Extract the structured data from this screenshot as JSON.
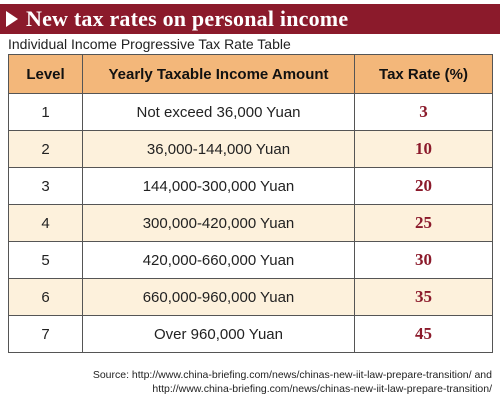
{
  "title": "New tax rates on personal income",
  "subtitle": "Individual Income Progressive Tax Rate Table",
  "table": {
    "headers": [
      "Level",
      "Yearly Taxable Income Amount",
      "Tax Rate (%)"
    ],
    "rows": [
      {
        "level": "1",
        "amount": "Not exceed 36,000 Yuan",
        "rate": "3"
      },
      {
        "level": "2",
        "amount": "36,000-144,000 Yuan",
        "rate": "10"
      },
      {
        "level": "3",
        "amount": "144,000-300,000 Yuan",
        "rate": "20"
      },
      {
        "level": "4",
        "amount": "300,000-420,000 Yuan",
        "rate": "25"
      },
      {
        "level": "5",
        "amount": "420,000-660,000 Yuan",
        "rate": "30"
      },
      {
        "level": "6",
        "amount": "660,000-960,000 Yuan",
        "rate": "35"
      },
      {
        "level": "7",
        "amount": "Over 960,000 Yuan",
        "rate": "45"
      }
    ]
  },
  "source": {
    "line1": "Source: http://www.china-briefing.com/news/chinas-new-iit-law-prepare-transition/ and",
    "line2": "http://www.china-briefing.com/news/chinas-new-iit-law-prepare-transition/"
  },
  "colors": {
    "brand": "#8b1a2b",
    "header_fill": "#f3b77a",
    "alt_row_fill": "#fdf1dc"
  }
}
